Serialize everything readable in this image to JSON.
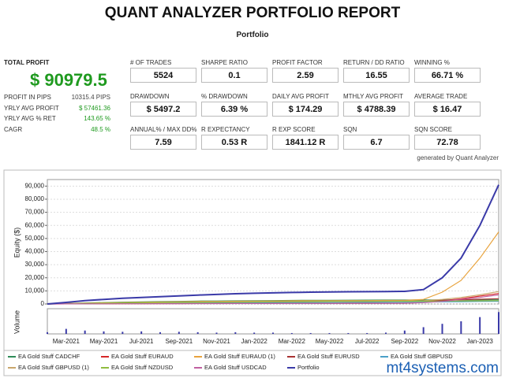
{
  "header": {
    "title": "QUANT ANALYZER PORTFOLIO REPORT",
    "subtitle": "Portfolio"
  },
  "summary": {
    "label": "TOTAL PROFIT",
    "value": "$ 90979.5",
    "rows": [
      [
        "PROFIT IN PIPS",
        "10315.4 PIPS"
      ],
      [
        "YRLY AVG PROFIT",
        "$ 57461.36"
      ],
      [
        "YRLY AVG % RET",
        "143.65 %"
      ],
      [
        "CAGR",
        "48.5 %"
      ]
    ]
  },
  "stats": [
    {
      "label": "# OF TRADES",
      "value": "5524"
    },
    {
      "label": "SHARPE RATIO",
      "value": "0.1"
    },
    {
      "label": "PROFIT FACTOR",
      "value": "2.59"
    },
    {
      "label": "RETURN / DD RATIO",
      "value": "16.55"
    },
    {
      "label": "WINNING %",
      "value": "66.71 %"
    },
    {
      "label": "DRAWDOWN",
      "value": "$ 5497.2"
    },
    {
      "label": "% DRAWDOWN",
      "value": "6.39 %"
    },
    {
      "label": "DAILY AVG PROFIT",
      "value": "$ 174.29"
    },
    {
      "label": "MTHLY AVG PROFIT",
      "value": "$ 4788.39"
    },
    {
      "label": "AVERAGE TRADE",
      "value": "$ 16.47"
    },
    {
      "label": "ANNUAL% / MAX DD%",
      "value": "7.59"
    },
    {
      "label": "R EXPECTANCY",
      "value": "0.53 R"
    },
    {
      "label": "R EXP SCORE",
      "value": "1841.12 R"
    },
    {
      "label": "SQN",
      "value": "6.7"
    },
    {
      "label": "SQN SCORE",
      "value": "72.78"
    }
  ],
  "footer": "generated by Quant Analyzer",
  "watermark": "mt4systems.com",
  "chart_data": {
    "type": "line",
    "ylabel": "Equity ($)",
    "grid": true,
    "categories": [
      null,
      "Mar-2021",
      null,
      "May-2021",
      null,
      "Jul-2021",
      null,
      "Sep-2021",
      null,
      "Nov-2021",
      null,
      "Jan-2022",
      null,
      "Mar-2022",
      null,
      "May-2022",
      null,
      "Jul-2022",
      null,
      "Sep-2022",
      null,
      "Nov-2022",
      null,
      "Jan-2023",
      null
    ],
    "ylim": [
      0,
      95000
    ],
    "yticks": [
      0,
      {
        "value": 10000,
        "label": "10,000"
      },
      {
        "value": 20000,
        "label": "20,000"
      },
      {
        "value": 30000,
        "label": "30,000"
      },
      {
        "value": 40000,
        "label": "40,000"
      },
      {
        "value": 50000,
        "label": "50,000"
      },
      {
        "value": 60000,
        "label": "60,000"
      },
      {
        "value": 70000,
        "label": "70,000"
      },
      {
        "value": 80000,
        "label": "80,000"
      },
      {
        "value": 90000,
        "label": "90,000"
      }
    ],
    "series": [
      {
        "name": "EA Gold Stuff CADCHF",
        "color": "#2e8b57",
        "values": [
          0,
          400,
          800,
          1100,
          1400,
          1600,
          1800,
          2000,
          2200,
          2300,
          2400,
          2500,
          2600,
          2700,
          2800,
          2850,
          2900,
          2950,
          3000,
          3000,
          3050,
          3100,
          3100,
          3150,
          3200
        ]
      },
      {
        "name": "EA Gold Stuff EURAUD",
        "color": "#d62728",
        "values": [
          0,
          50,
          100,
          150,
          200,
          250,
          300,
          300,
          350,
          400,
          400,
          450,
          450,
          500,
          500,
          500,
          550,
          550,
          600,
          600,
          1200,
          2500,
          4000,
          6000,
          8000
        ]
      },
      {
        "name": "EA Gold Stuff EURAUD (1)",
        "color": "#e8a33d",
        "values": [
          0,
          300,
          600,
          900,
          1100,
          1300,
          1500,
          1700,
          1900,
          2000,
          2100,
          2200,
          2300,
          2400,
          2500,
          2500,
          2600,
          2600,
          2700,
          2700,
          3500,
          9000,
          18000,
          35000,
          55000
        ]
      },
      {
        "name": "EA Gold Stuff EURUSD",
        "color": "#a83232",
        "values": [
          0,
          150,
          300,
          450,
          600,
          750,
          900,
          1000,
          1100,
          1200,
          1300,
          1400,
          1500,
          1600,
          1700,
          1800,
          1900,
          2000,
          2100,
          2200,
          2400,
          2800,
          3200,
          3600,
          4000
        ]
      },
      {
        "name": "EA Gold Stuff GBPUSD",
        "color": "#4aa0c8",
        "values": [
          0,
          100,
          200,
          300,
          400,
          500,
          550,
          600,
          700,
          750,
          800,
          850,
          900,
          950,
          1000,
          1050,
          1100,
          1150,
          1200,
          1250,
          1400,
          1600,
          1750,
          1900,
          2000
        ]
      },
      {
        "name": "EA Gold Stuff GBPUSD (1)",
        "color": "#c9a66b",
        "values": [
          0,
          200,
          400,
          600,
          800,
          1000,
          1200,
          1400,
          1500,
          1600,
          1700,
          1800,
          1900,
          2000,
          2100,
          2100,
          2200,
          2200,
          2300,
          2300,
          2500,
          3500,
          5000,
          7000,
          9500
        ]
      },
      {
        "name": "EA Gold Stuff NZDUSD",
        "color": "#8fbc3f",
        "values": [
          0,
          200,
          400,
          600,
          800,
          900,
          1000,
          1100,
          1200,
          1300,
          1400,
          1500,
          1600,
          1700,
          1800,
          1850,
          1900,
          1950,
          2000,
          2050,
          2100,
          2200,
          2300,
          2400,
          2500
        ]
      },
      {
        "name": "EA Gold Stuff USDCAD",
        "color": "#c060a0",
        "values": [
          0,
          50,
          100,
          150,
          200,
          200,
          250,
          250,
          300,
          300,
          350,
          350,
          400,
          400,
          450,
          450,
          500,
          500,
          550,
          600,
          1000,
          2000,
          3500,
          5000,
          7000
        ]
      },
      {
        "name": "Portfolio",
        "color": "#3a3aa8",
        "values": [
          0,
          1200,
          2500,
          3500,
          4300,
          5000,
          5600,
          6200,
          6800,
          7300,
          7800,
          8200,
          8500,
          8800,
          9000,
          9200,
          9300,
          9400,
          9500,
          9600,
          11000,
          20000,
          35000,
          60000,
          91000
        ]
      }
    ],
    "volume": {
      "label": "Volume",
      "color": "#3a3aa8",
      "ylim": [
        0,
        300
      ],
      "values": [
        20,
        60,
        40,
        30,
        25,
        30,
        20,
        25,
        20,
        15,
        20,
        15,
        15,
        10,
        10,
        10,
        10,
        10,
        15,
        40,
        80,
        120,
        150,
        200,
        260
      ]
    }
  }
}
